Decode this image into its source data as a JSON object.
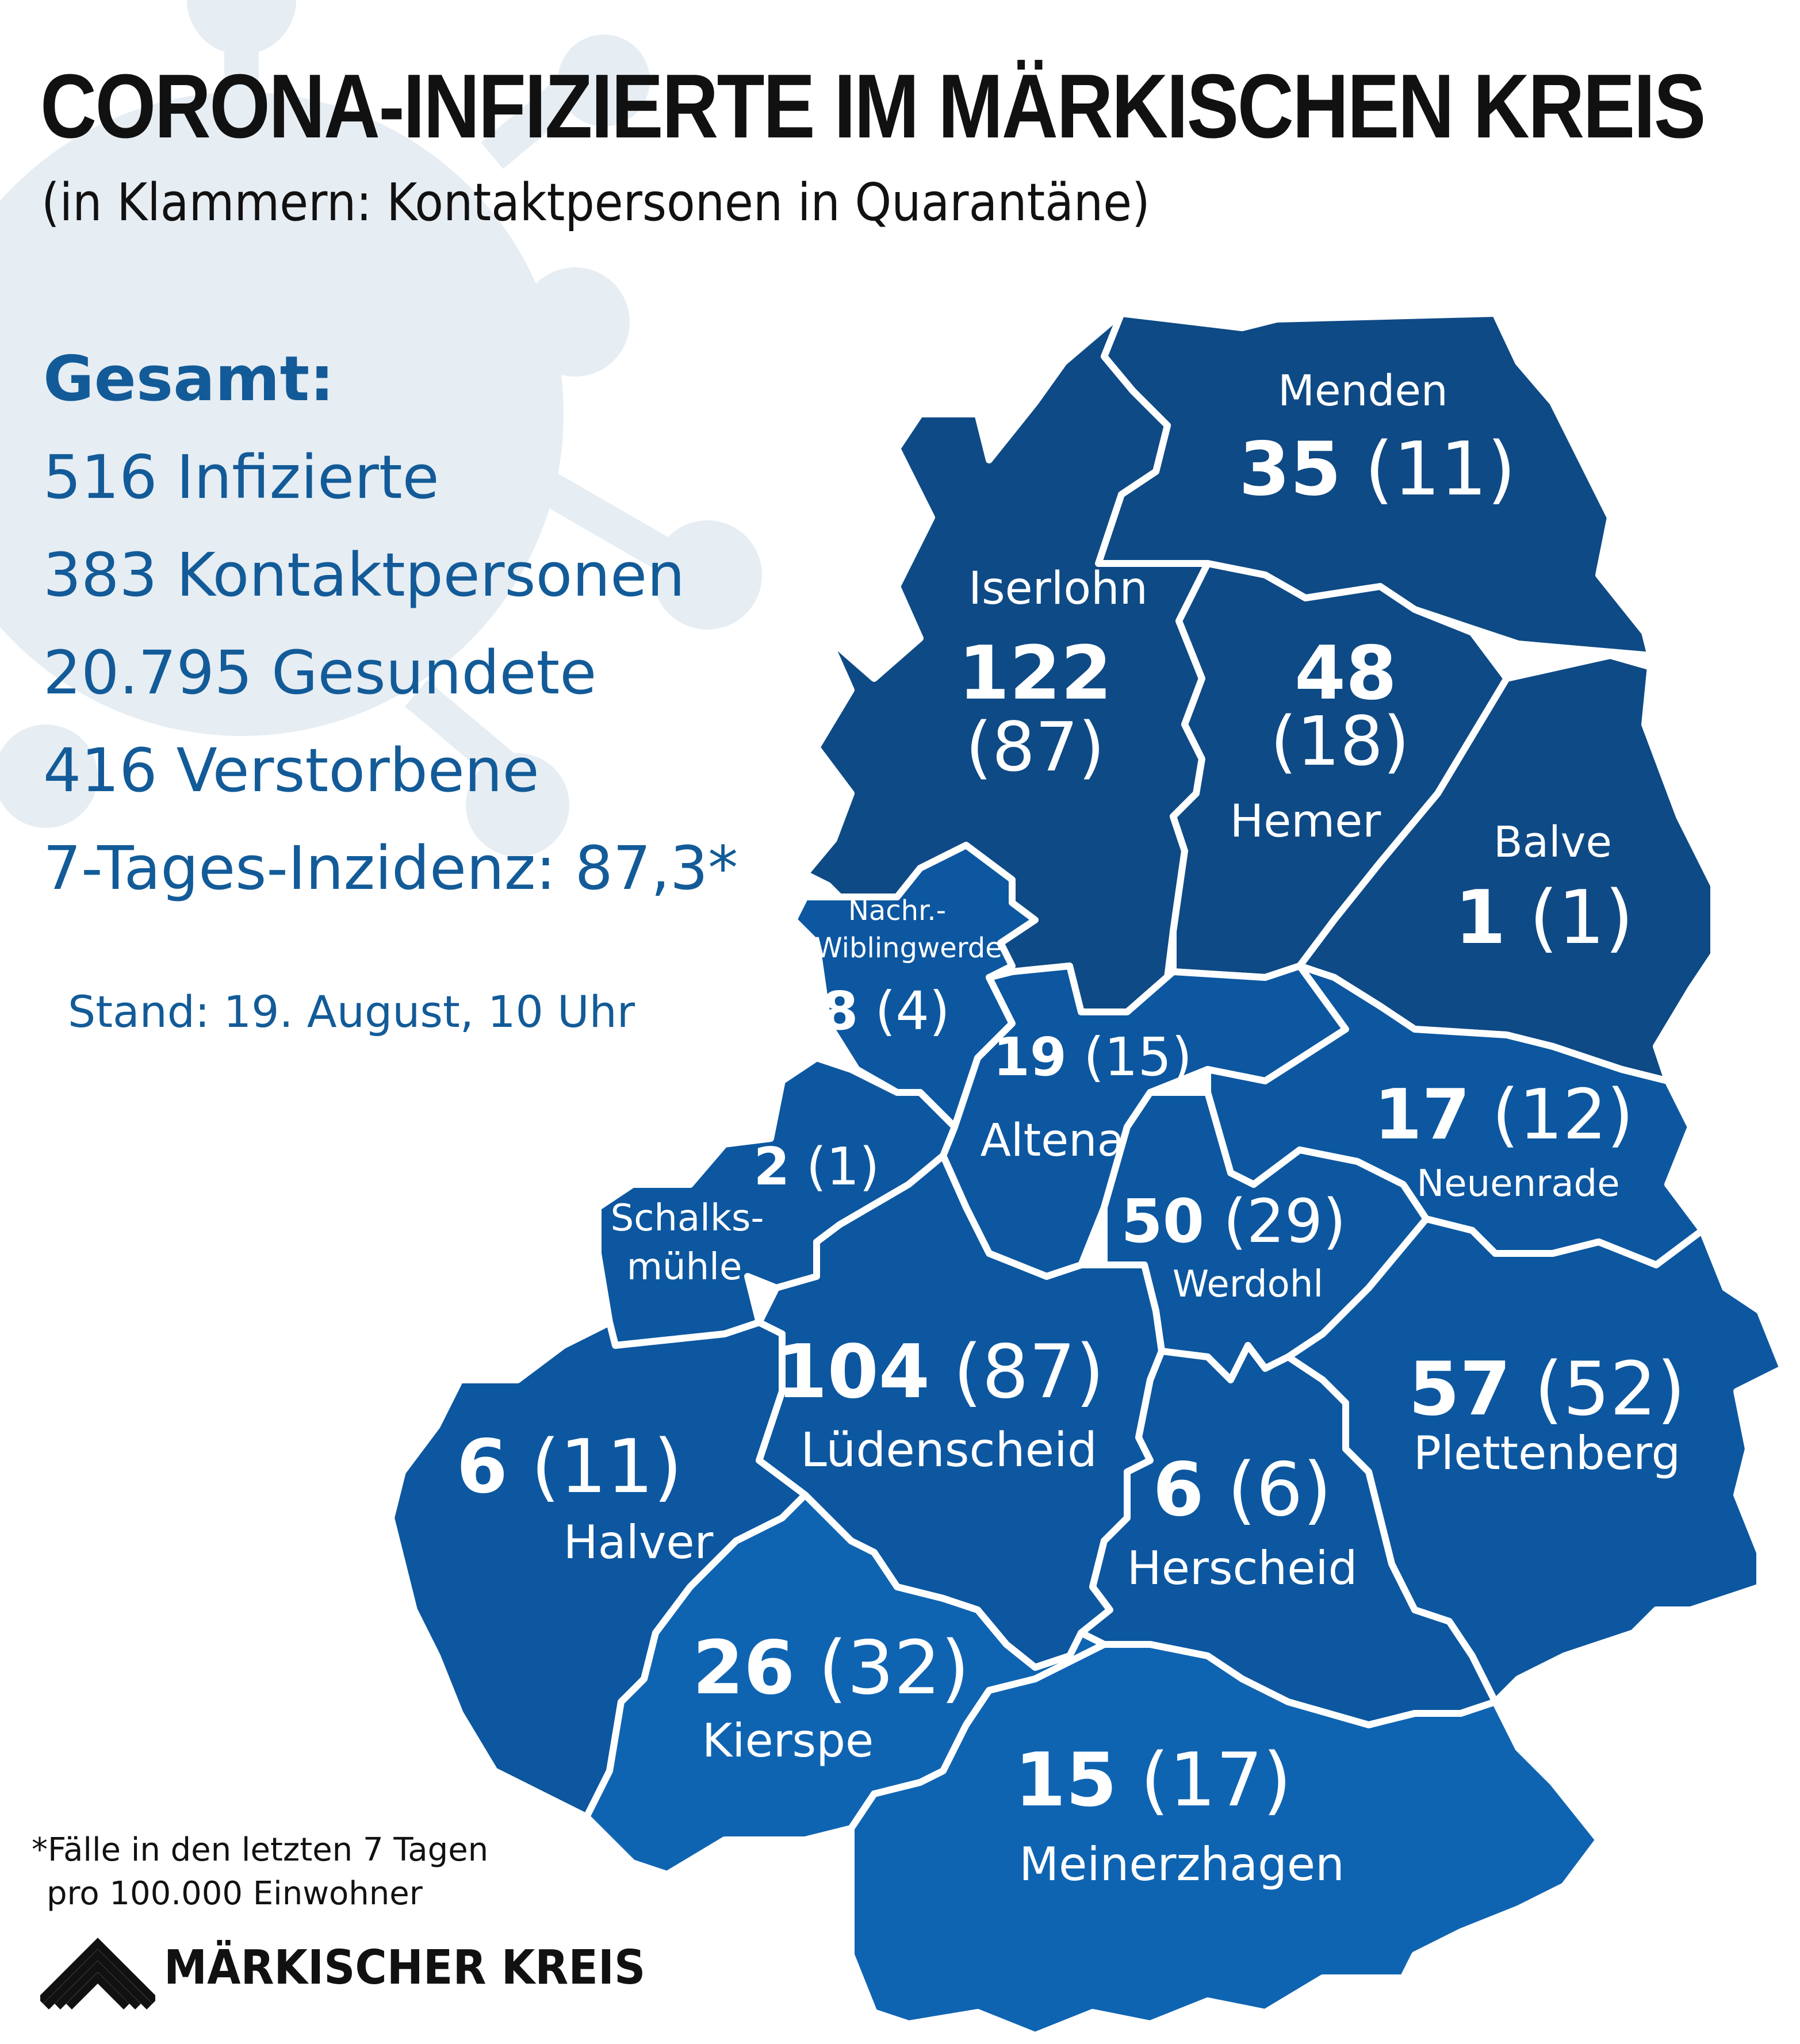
{
  "title": "CORONA-INFIZIERTE IM MÄRKISCHEN KREIS",
  "subtitle": "(in Klammern: Kontaktpersonen in Quarantäne)",
  "summary": {
    "heading": "Gesamt:",
    "lines": [
      "516 Infizierte",
      "383 Kontaktpersonen",
      "20.795 Gesundete",
      "416 Verstorbene",
      "7-Tages-Inzidenz: 87,3*"
    ]
  },
  "stand": "Stand: 19. August, 10 Uhr",
  "footnote": {
    "line1": "*Fälle in den letzten 7 Tagen",
    "line2": "pro 100.000 Einwohner"
  },
  "logo": {
    "text": "MÄRKISCHER KREIS",
    "icon": "roof-chevrons-icon"
  },
  "colors": {
    "dark_blue": "#0e4a85",
    "mid_blue": "#0c57a0",
    "light_blue": "#0f64b2",
    "text_blue": "#135b98",
    "virus_bg": "#e6edf3"
  },
  "regions": {
    "menden": {
      "name": "Menden",
      "infected": "35",
      "contacts": "(11)"
    },
    "iserlohn": {
      "name": "Iserlohn",
      "infected": "122",
      "contacts": "(87)"
    },
    "hemer": {
      "name": "Hemer",
      "infected": "48",
      "contacts": "(18)"
    },
    "balve": {
      "name": "Balve",
      "infected": "1",
      "contacts": "(1)"
    },
    "nachrodt": {
      "name_line1": "Nachr.-",
      "name_line2": "Wiblingwerde",
      "infected": "8",
      "contacts": "(4)"
    },
    "altena": {
      "name": "Altena",
      "infected": "19",
      "contacts": "(15)"
    },
    "neuenrade": {
      "name": "Neuenrade",
      "infected": "17",
      "contacts": "(12)"
    },
    "schalksmuehle": {
      "name_line1": "Schalks-",
      "name_line2": "mühle",
      "infected": "2",
      "contacts": "(1)"
    },
    "werdohl": {
      "name": "Werdohl",
      "infected": "50",
      "contacts": "(29)"
    },
    "luedenscheid": {
      "name": "Lüdenscheid",
      "infected": "104",
      "contacts": "(87)"
    },
    "plettenberg": {
      "name": "Plettenberg",
      "infected": "57",
      "contacts": "(52)"
    },
    "halver": {
      "name": "Halver",
      "infected": "6",
      "contacts": "(11)"
    },
    "herscheid": {
      "name": "Herscheid",
      "infected": "6",
      "contacts": "(6)"
    },
    "kierspe": {
      "name": "Kierspe",
      "infected": "26",
      "contacts": "(32)"
    },
    "meinerzhagen": {
      "name": "Meinerzhagen",
      "infected": "15",
      "contacts": "(17)"
    }
  }
}
